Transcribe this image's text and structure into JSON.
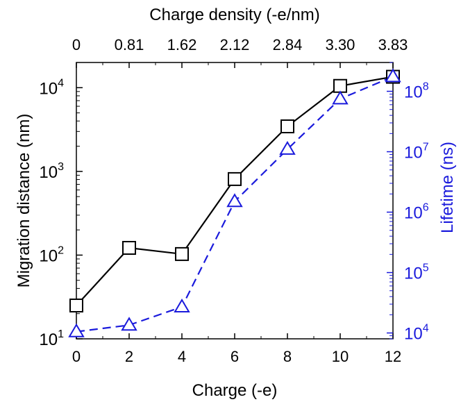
{
  "chart_data": {
    "type": "line",
    "xlabel": "Charge (-e)",
    "x": [
      0,
      2,
      4,
      6,
      8,
      10,
      12
    ],
    "x_ticks": [
      "0",
      "2",
      "4",
      "6",
      "8",
      "10",
      "12"
    ],
    "xlim": [
      0,
      12
    ],
    "top_axis": {
      "label": "Charge density (-e/nm)",
      "ticks": [
        "0",
        "0.81",
        "1.62",
        "2.12",
        "2.84",
        "3.30",
        "3.83"
      ]
    },
    "left_axis": {
      "label": "Migration distance (nm)",
      "scale": "log",
      "lim": [
        10,
        20000
      ],
      "tick_base": "10",
      "tick_exps": [
        "1",
        "2",
        "3",
        "4"
      ],
      "color": "#000000"
    },
    "right_axis": {
      "label": "Lifetime (ns)",
      "scale": "log",
      "lim": [
        8000,
        300000000
      ],
      "tick_base": "10",
      "tick_exps": [
        "4",
        "5",
        "6",
        "7",
        "8"
      ],
      "color": "#1a1adc"
    },
    "series": [
      {
        "axis": "left",
        "marker": "square",
        "line": "solid",
        "color": "#000000",
        "values": [
          25,
          122,
          103,
          810,
          3450,
          10500,
          13500
        ]
      },
      {
        "axis": "right",
        "marker": "triangle",
        "line": "dashed",
        "color": "#1a1adc",
        "values": [
          10500,
          13500,
          27000,
          1500000,
          11000000,
          75000000,
          175000000
        ]
      }
    ]
  }
}
